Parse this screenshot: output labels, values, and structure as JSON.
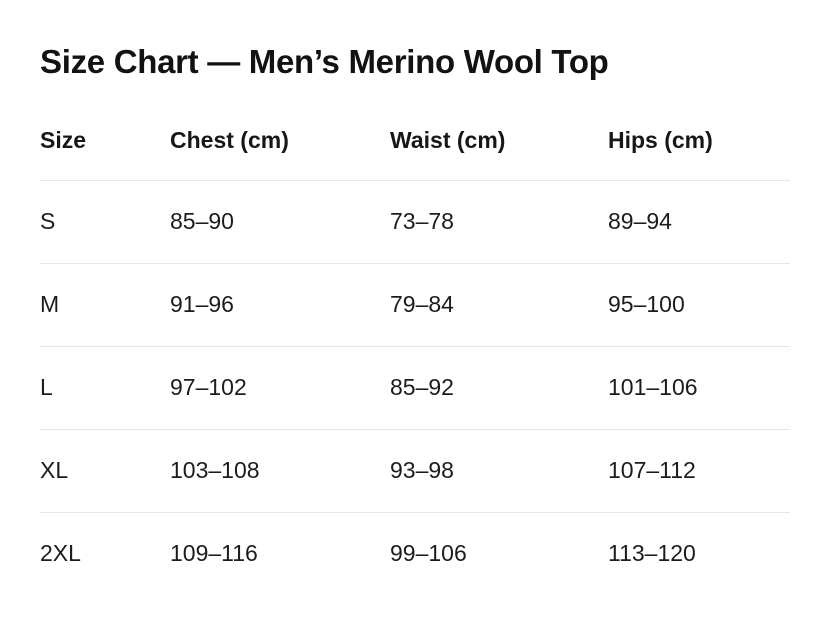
{
  "page": {
    "title": "Size Chart — Men’s Merino Wool Top"
  },
  "colors": {
    "background": "#ffffff",
    "text": "#1c1c1f",
    "heading_text": "#121214",
    "divider": "#e7e7e9"
  },
  "chart_data": {
    "type": "table",
    "title": "Size Chart — Men’s Merino Wool Top",
    "columns": [
      "Size",
      "Chest (cm)",
      "Waist (cm)",
      "Hips (cm)"
    ],
    "rows": [
      [
        "S",
        "85–90",
        "73–78",
        "89–94"
      ],
      [
        "M",
        "91–96",
        "79–84",
        "95–100"
      ],
      [
        "L",
        "97–102",
        "85–92",
        "101–106"
      ],
      [
        "XL",
        "103–108",
        "93–98",
        "107–112"
      ],
      [
        "2XL",
        "109–116",
        "99–106",
        "113–120"
      ]
    ]
  }
}
